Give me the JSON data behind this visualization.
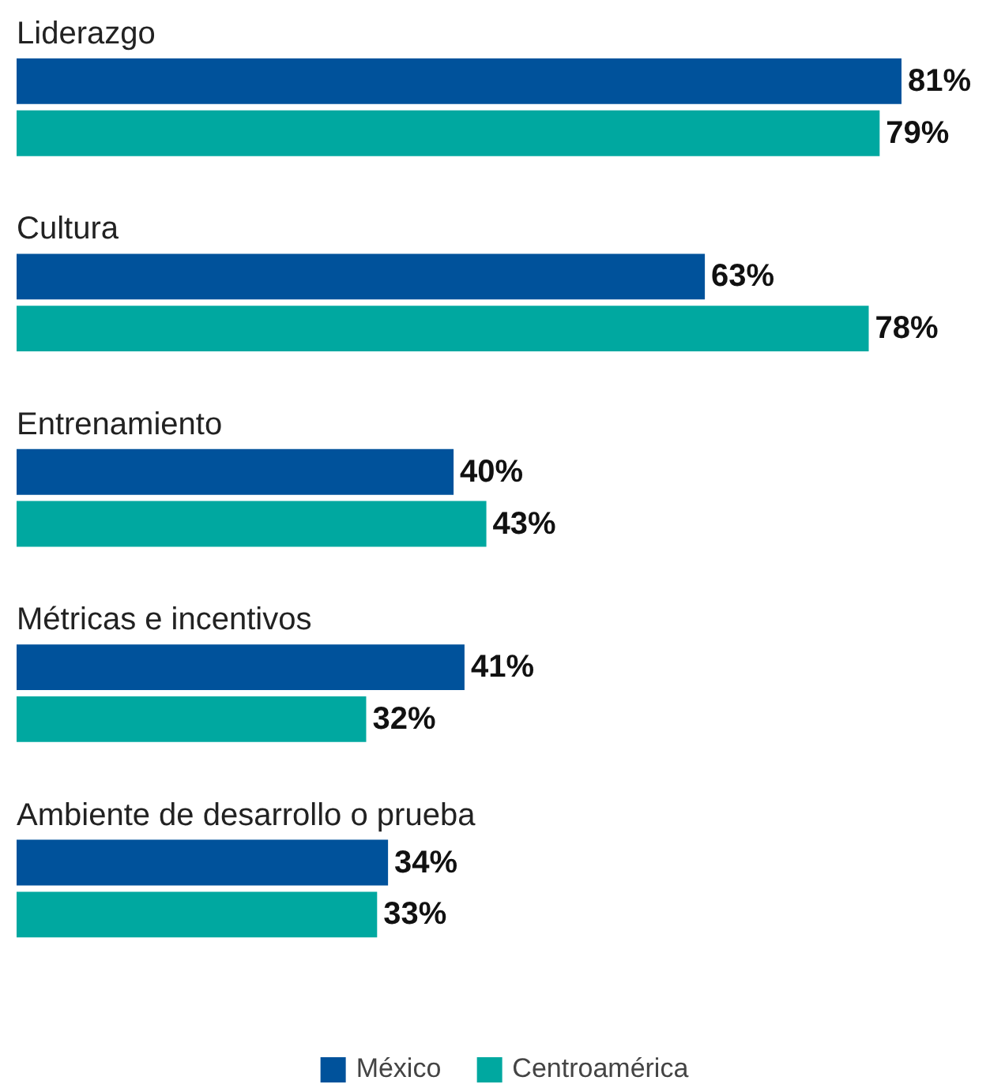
{
  "chart_data": {
    "type": "bar",
    "orientation": "horizontal",
    "categories": [
      "Liderazgo",
      "Cultura",
      "Entrenamiento",
      "Métricas e incentivos",
      "Ambiente de desarrollo o prueba"
    ],
    "series": [
      {
        "name": "México",
        "color": "#00529b",
        "values": [
          81,
          63,
          40,
          41,
          34
        ],
        "value_labels": [
          "81%",
          "63%",
          "40%",
          "41%",
          "34%"
        ]
      },
      {
        "name": "Centroamérica",
        "color": "#00a8a0",
        "values": [
          79,
          78,
          43,
          32,
          33
        ],
        "value_labels": [
          "79%",
          "78%",
          "43%",
          "32%",
          "33%"
        ]
      }
    ],
    "legend": "bottom",
    "grid": false
  }
}
